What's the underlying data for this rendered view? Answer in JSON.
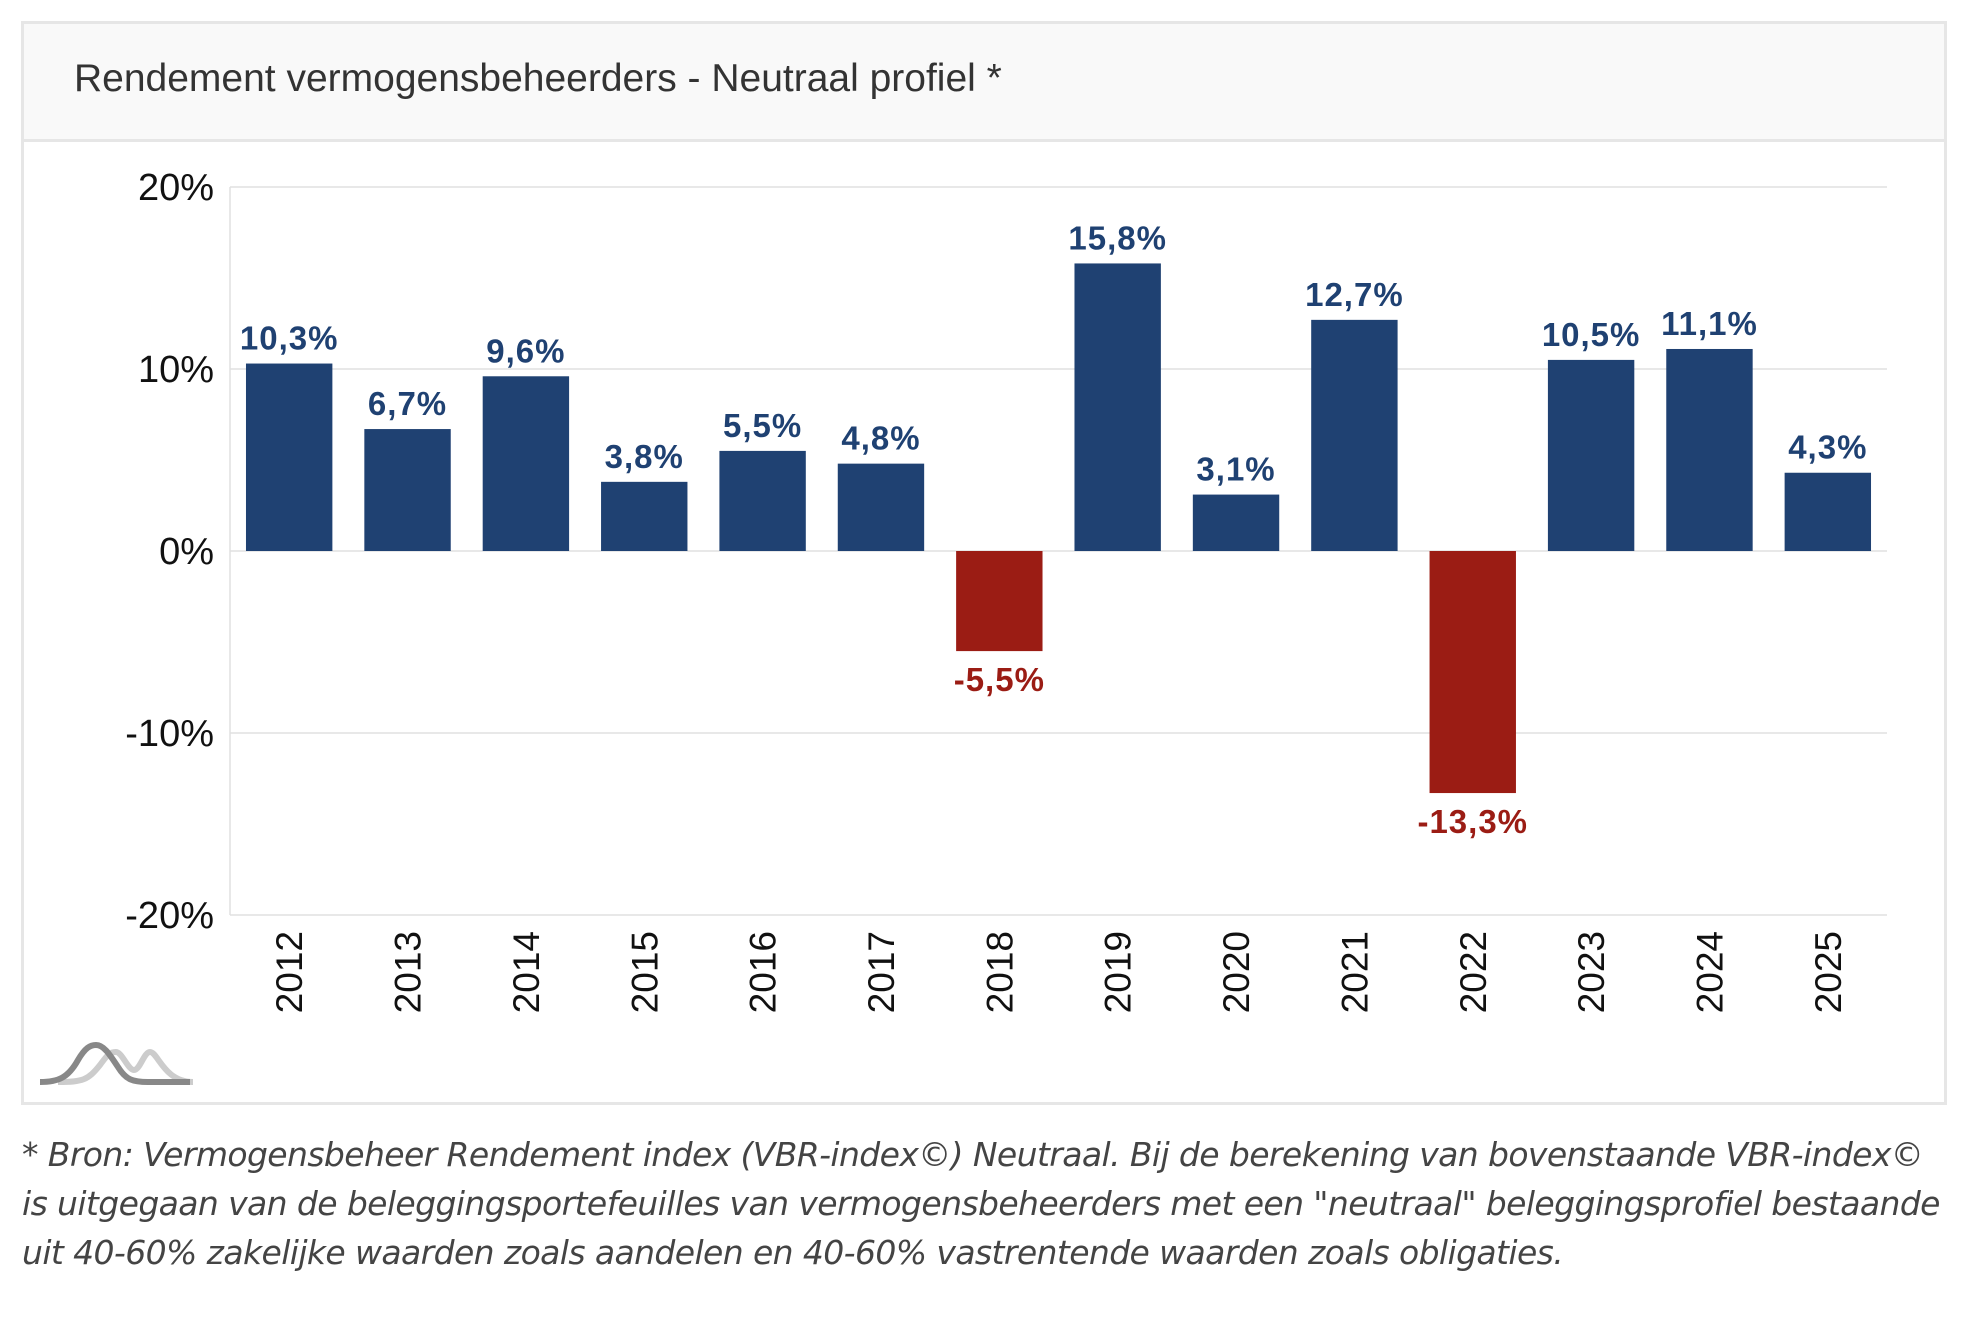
{
  "chart_data": {
    "type": "bar",
    "title": "Rendement vermogensbeheerders - Neutraal profiel *",
    "categories": [
      "2012",
      "2013",
      "2014",
      "2015",
      "2016",
      "2017",
      "2018",
      "2019",
      "2020",
      "2021",
      "2022",
      "2023",
      "2024",
      "2025"
    ],
    "values": [
      10.3,
      6.7,
      9.6,
      3.8,
      5.5,
      4.8,
      -5.5,
      15.8,
      3.1,
      12.7,
      -13.3,
      10.5,
      11.1,
      4.3
    ],
    "data_labels": [
      "10,3%",
      "6,7%",
      "9,6%",
      "3,8%",
      "5,5%",
      "4,8%",
      "-5,5%",
      "15,8%",
      "3,1%",
      "12,7%",
      "-13,3%",
      "10,5%",
      "11,1%",
      "4,3%"
    ],
    "ylim": [
      -20,
      20
    ],
    "yticks": [
      20,
      10,
      0,
      -10,
      -20
    ],
    "ytick_labels": [
      "20%",
      "10%",
      "0%",
      "-10%",
      "-20%"
    ],
    "xlabel": "",
    "ylabel": "",
    "grid": true,
    "colors": {
      "positive": "#1f4172",
      "negative": "#9b1c14"
    }
  },
  "footnote": "* Bron: Vermogensbeheer Rendement index (VBR-index©) Neutraal. Bij de berekening van bovenstaande VBR-index© is uitgegaan van de beleggingsportefeuilles van vermogensbeheerders met een \"neutraal\" beleggingsprofiel bestaande uit 40-60% zakelijke waarden zoals aandelen en 40-60% vastrentende waarden zoals obligaties.",
  "logo": {
    "icon": "bell-curves-logo"
  }
}
